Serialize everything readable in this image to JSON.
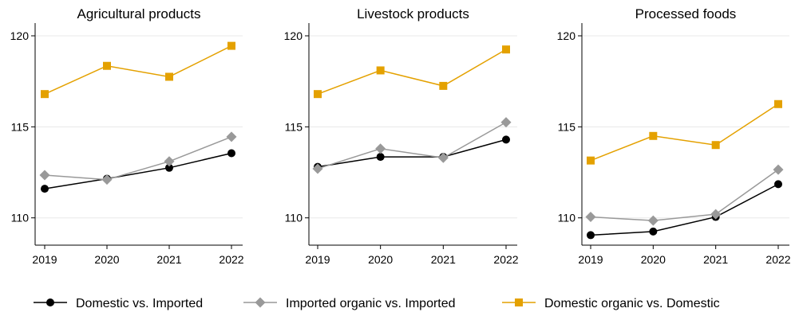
{
  "chart_data": [
    {
      "type": "line",
      "title": "Agricultural products",
      "categories": [
        "2019",
        "2020",
        "2021",
        "2022"
      ],
      "ylim": [
        108.5,
        120.7
      ],
      "yticks": [
        "110",
        "115",
        "120"
      ],
      "grid": true,
      "series": [
        {
          "name": "Domestic vs. Imported",
          "values": [
            111.6,
            112.15,
            112.75,
            113.55
          ]
        },
        {
          "name": "Imported organic vs. Imported",
          "values": [
            112.35,
            112.1,
            113.1,
            114.45
          ]
        },
        {
          "name": "Domestic organic vs. Domestic",
          "values": [
            116.8,
            118.35,
            117.75,
            119.45
          ]
        }
      ]
    },
    {
      "type": "line",
      "title": "Livestock products",
      "categories": [
        "2019",
        "2020",
        "2021",
        "2022"
      ],
      "ylim": [
        108.5,
        120.7
      ],
      "yticks": [
        "110",
        "115",
        "120"
      ],
      "grid": true,
      "series": [
        {
          "name": "Domestic vs. Imported",
          "values": [
            112.8,
            113.35,
            113.35,
            114.3
          ]
        },
        {
          "name": "Imported organic vs. Imported",
          "values": [
            112.7,
            113.8,
            113.3,
            115.25
          ]
        },
        {
          "name": "Domestic organic vs. Domestic",
          "values": [
            116.8,
            118.1,
            117.25,
            119.25
          ]
        }
      ]
    },
    {
      "type": "line",
      "title": "Processed foods",
      "categories": [
        "2019",
        "2020",
        "2021",
        "2022"
      ],
      "ylim": [
        108.5,
        120.7
      ],
      "yticks": [
        "110",
        "115",
        "120"
      ],
      "grid": true,
      "series": [
        {
          "name": "Domestic vs. Imported",
          "values": [
            109.05,
            109.25,
            110.05,
            111.85
          ]
        },
        {
          "name": "Imported organic vs. Imported",
          "values": [
            110.05,
            109.85,
            110.2,
            112.65
          ]
        },
        {
          "name": "Domestic organic vs. Domestic",
          "values": [
            113.15,
            114.5,
            114.0,
            116.25
          ]
        }
      ]
    }
  ],
  "legend": {
    "placement": "bottom",
    "items": [
      {
        "label": "Domestic vs. Imported",
        "color": "#000000",
        "marker": "circle"
      },
      {
        "label": "Imported organic vs. Imported",
        "color": "#999999",
        "marker": "diamond"
      },
      {
        "label": "Domestic organic vs. Domestic",
        "color": "#E4A100",
        "marker": "square"
      }
    ]
  },
  "colors": {
    "series": [
      "#000000",
      "#999999",
      "#E4A100"
    ],
    "grid": "#e8e8e8",
    "axis": "#000000"
  }
}
